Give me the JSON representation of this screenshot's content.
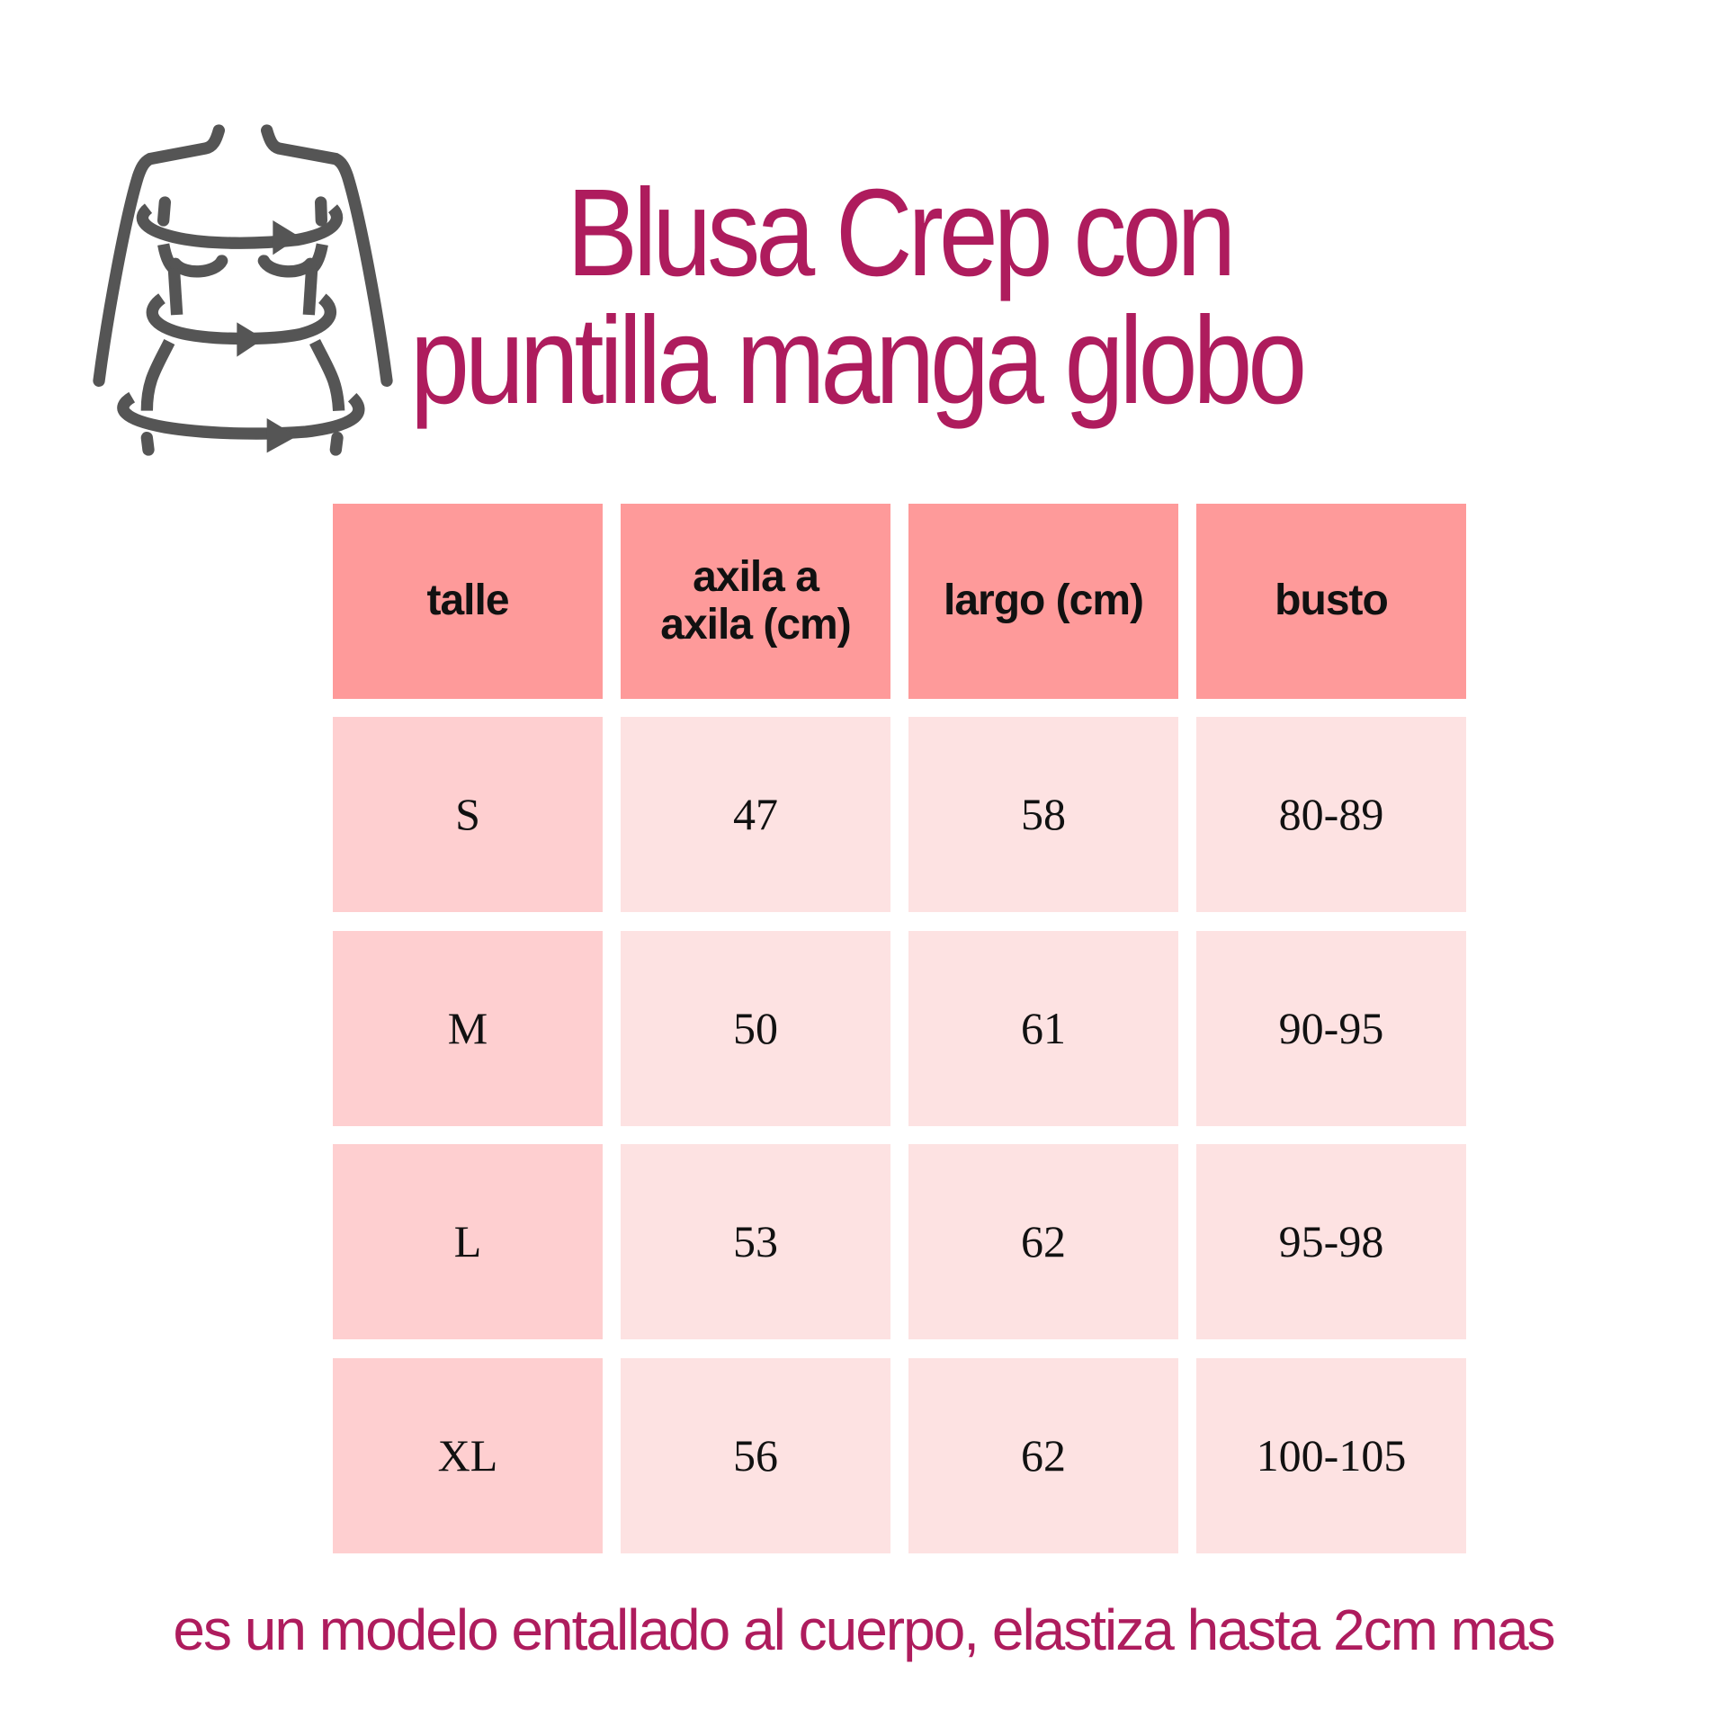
{
  "title": {
    "line1": "Blusa Crep con",
    "line2": "puntilla  manga globo"
  },
  "icon": "body-measurement-icon",
  "colors": {
    "title": "#ae1c5d",
    "header": "#fe9a9a",
    "first_col": "#fecfd0",
    "cell": "#fde2e2",
    "icon": "#555555"
  },
  "table": {
    "headers": [
      "talle",
      "axila a axila (cm)",
      "largo (cm)",
      "busto"
    ],
    "rows": [
      [
        "S",
        "47",
        "58",
        "80-89"
      ],
      [
        "M",
        "50",
        "61",
        "90-95"
      ],
      [
        "L",
        "53",
        "62",
        "95-98"
      ],
      [
        "XL",
        "56",
        "62",
        "100-105"
      ]
    ]
  },
  "footer": "es un modelo entallado al cuerpo, elastiza hasta 2cm mas"
}
